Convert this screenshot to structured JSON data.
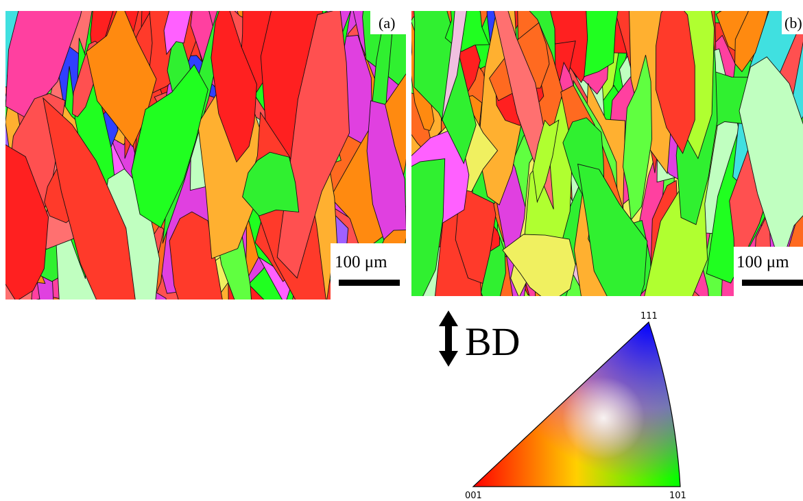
{
  "panels": [
    {
      "label": "(a)",
      "scale_bar": "100 μm"
    },
    {
      "label": "(b)",
      "scale_bar": "100 μm"
    }
  ],
  "direction_label": "BD",
  "ipf": {
    "corner_001": "001",
    "corner_101": "101",
    "corner_111": "111"
  }
}
